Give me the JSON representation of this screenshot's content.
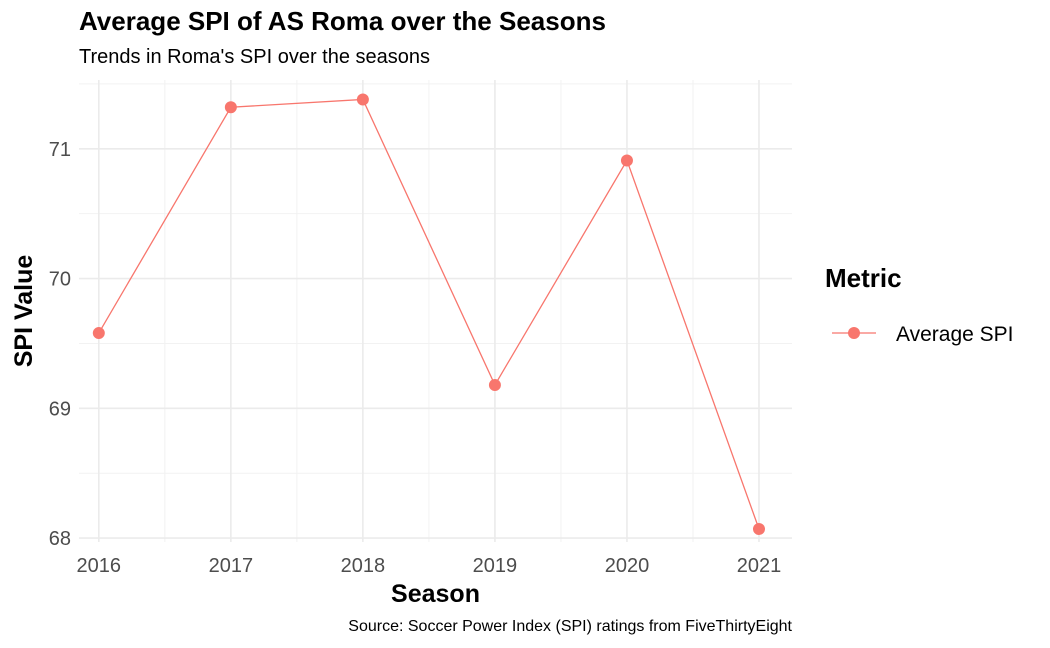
{
  "chart_data": {
    "type": "line",
    "title": "Average SPI of AS Roma over the Seasons",
    "subtitle": "Trends in Roma's SPI over the seasons",
    "caption": "Source: Soccer Power Index (SPI) ratings from FiveThirtyEight",
    "xlabel": "Season",
    "ylabel": "SPI Value",
    "x": [
      2016,
      2017,
      2018,
      2019,
      2020,
      2021
    ],
    "x_ticks": [
      "2016",
      "2017",
      "2018",
      "2019",
      "2020",
      "2021"
    ],
    "y_ticks": [
      "68",
      "69",
      "70",
      "71"
    ],
    "y_tick_values": [
      68,
      69,
      70,
      71
    ],
    "ylim": [
      67.97,
      71.53
    ],
    "xlim": [
      2015.85,
      2021.25
    ],
    "grid": true,
    "legend": {
      "title": "Metric",
      "position": "right"
    },
    "series": [
      {
        "name": "Average SPI",
        "color": "#f8766d",
        "values": [
          69.58,
          71.32,
          71.38,
          69.18,
          70.91,
          68.07
        ]
      }
    ]
  }
}
